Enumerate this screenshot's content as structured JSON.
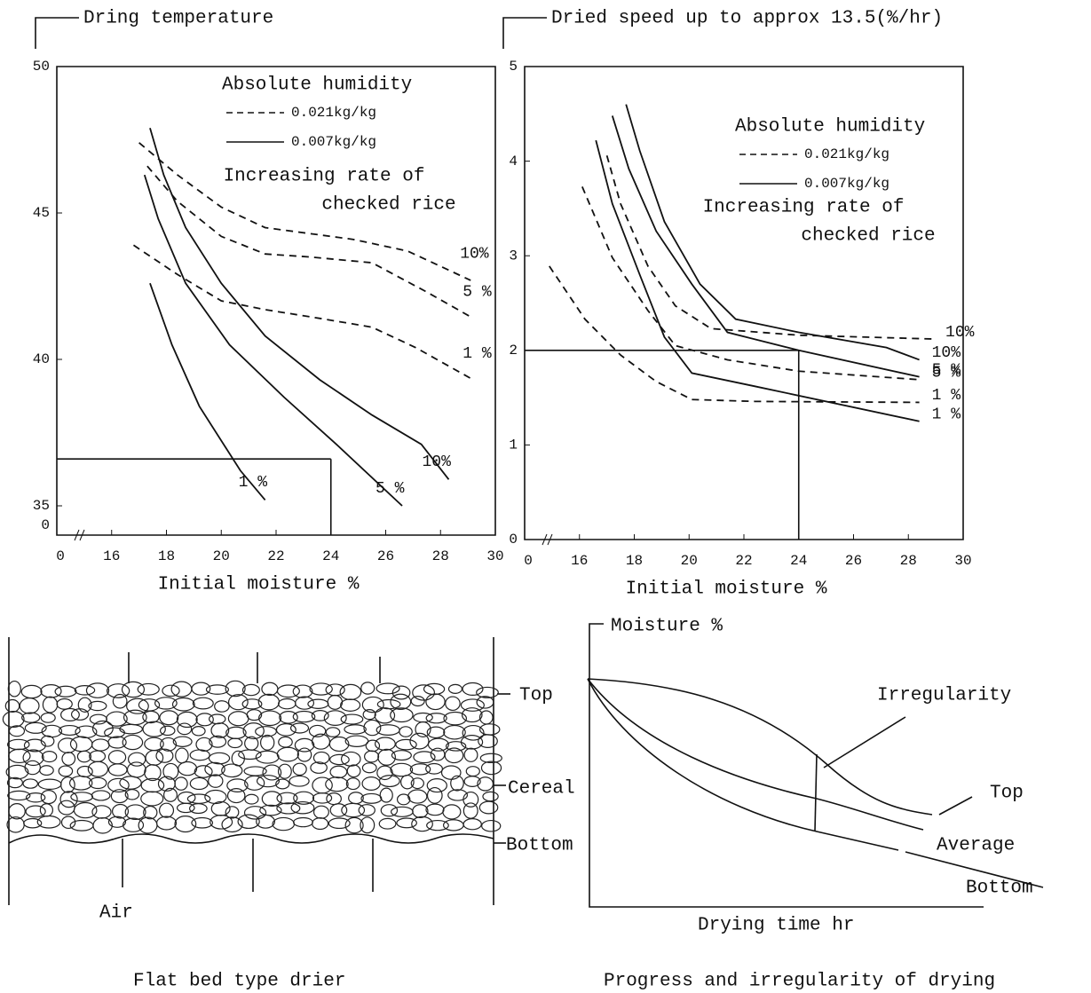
{
  "chart_data": [
    {
      "type": "line",
      "ylabel": "Dring temperature",
      "xlabel": "Initial moisture %",
      "xlim": [
        14,
        30
      ],
      "xticks": [
        16,
        18,
        20,
        22,
        24,
        26,
        28,
        30
      ],
      "x_break_label": "0",
      "ylim": [
        34,
        50
      ],
      "yticks": [
        35,
        40,
        45,
        50
      ],
      "y_break_label": "0",
      "legend_title": "Absolute humidity",
      "annotation": [
        "Increasing rate of",
        "checked rice"
      ],
      "guide": {
        "x": 24,
        "y": 36.6
      },
      "color": "#111111",
      "series": [
        {
          "name": "0.021kg/kg",
          "dashed": true,
          "curves": [
            {
              "label": "10%",
              "x": [
                17.0,
                18.4,
                20.0,
                21.6,
                23.2,
                24.8,
                26.8,
                29.1
              ],
              "values": [
                47.4,
                46.3,
                45.2,
                44.5,
                44.3,
                44.1,
                43.7,
                42.7
              ]
            },
            {
              "label": "5 %",
              "x": [
                17.3,
                18.4,
                20.0,
                21.6,
                23.2,
                25.5,
                27.5,
                29.2
              ],
              "values": [
                46.6,
                45.4,
                44.2,
                43.6,
                43.5,
                43.3,
                42.3,
                41.4
              ]
            },
            {
              "label": "1 %",
              "x": [
                16.8,
                18.4,
                20.0,
                21.6,
                23.6,
                25.5,
                27.1,
                29.2
              ],
              "values": [
                43.9,
                42.9,
                42.0,
                41.7,
                41.4,
                41.1,
                40.4,
                39.3
              ]
            }
          ]
        },
        {
          "name": "0.007kg/kg",
          "dashed": false,
          "curves": [
            {
              "label": "10%",
              "x": [
                17.4,
                17.9,
                18.7,
                20.0,
                21.6,
                23.6,
                25.5,
                27.3,
                28.3
              ],
              "values": [
                47.9,
                46.3,
                44.5,
                42.6,
                40.8,
                39.3,
                38.1,
                37.1,
                35.9
              ]
            },
            {
              "label": "5 %",
              "x": [
                17.2,
                17.7,
                18.7,
                20.3,
                22.3,
                24.2,
                26.6
              ],
              "values": [
                46.3,
                44.8,
                42.6,
                40.5,
                38.7,
                37.1,
                35.0
              ]
            },
            {
              "label": "1 %",
              "x": [
                17.4,
                18.2,
                19.2,
                20.7,
                21.6
              ],
              "values": [
                42.6,
                40.5,
                38.4,
                36.2,
                35.2
              ]
            }
          ]
        }
      ]
    },
    {
      "type": "line",
      "ylabel": "Dried speed up to approx 13.5(%/hr)",
      "xlabel": "Initial moisture %",
      "xlim": [
        14,
        30
      ],
      "xticks": [
        16,
        18,
        20,
        22,
        24,
        26,
        28,
        30
      ],
      "x_break_label": "0",
      "ylim": [
        0,
        5
      ],
      "yticks": [
        0,
        1,
        2,
        3,
        4,
        5
      ],
      "legend_title": "Absolute humidity",
      "annotation": [
        "Increasing rate of",
        "checked rice"
      ],
      "guide": {
        "x": 24,
        "y": 2.0
      },
      "color": "#111111",
      "series": [
        {
          "name": "0.021kg/kg",
          "dashed": true,
          "curves": [
            {
              "label": "10%",
              "x": [
                17.0,
                17.5,
                18.5,
                19.5,
                20.8,
                24.0,
                28.9
              ],
              "values": [
                4.06,
                3.55,
                2.89,
                2.47,
                2.23,
                2.16,
                2.12
              ]
            },
            {
              "label": "5 %",
              "x": [
                16.1,
                17.2,
                18.5,
                19.5,
                21.4,
                24.0,
                28.4
              ],
              "values": [
                3.73,
                2.98,
                2.42,
                2.05,
                1.9,
                1.78,
                1.69
              ]
            },
            {
              "label": "1 %",
              "x": [
                14.9,
                16.2,
                17.5,
                18.8,
                20.1,
                22.4,
                28.4
              ],
              "values": [
                2.89,
                2.33,
                1.95,
                1.67,
                1.48,
                1.46,
                1.45
              ]
            }
          ]
        },
        {
          "name": "0.007kg/kg",
          "dashed": false,
          "curves": [
            {
              "label": "10%",
              "x": [
                17.7,
                18.2,
                19.1,
                20.4,
                21.7,
                24.0,
                27.2,
                28.4
              ],
              "values": [
                4.6,
                4.11,
                3.36,
                2.7,
                2.33,
                2.19,
                2.03,
                1.9
              ]
            },
            {
              "label": "5 %",
              "x": [
                17.2,
                17.8,
                18.8,
                20.1,
                21.4,
                24.0,
                28.4
              ],
              "values": [
                4.48,
                3.92,
                3.26,
                2.7,
                2.19,
                2.0,
                1.72
              ]
            },
            {
              "label": "1 %",
              "x": [
                16.6,
                17.2,
                18.2,
                19.1,
                20.1,
                22.4,
                28.4
              ],
              "values": [
                4.22,
                3.55,
                2.8,
                2.14,
                1.76,
                1.62,
                1.25
              ]
            }
          ]
        }
      ]
    }
  ],
  "drier": {
    "labels": {
      "top": "Top",
      "cereal": "Cereal",
      "bottom": "Bottom",
      "air": "Air"
    },
    "caption": "Flat bed type drier"
  },
  "progress": {
    "ylabel": "Moisture %",
    "xlabel": "Drying time hr",
    "irregularity": "Irregularity",
    "curves": {
      "top": "Top",
      "average": "Average",
      "bottom": "Bottom"
    },
    "caption": "Progress and irregularity of drying"
  }
}
